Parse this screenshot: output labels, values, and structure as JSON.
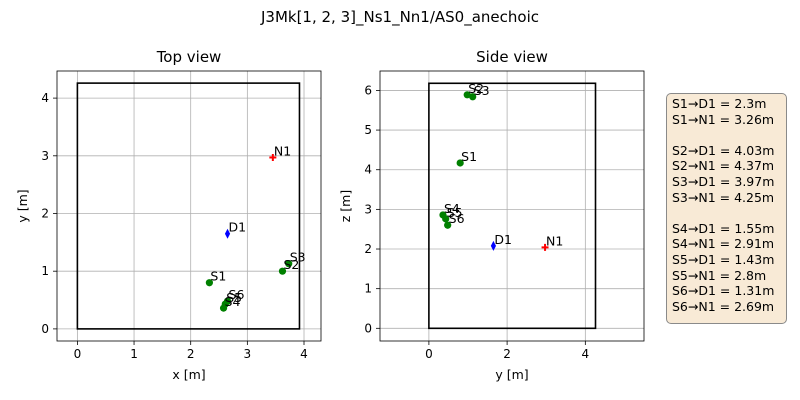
{
  "figure_title": "J3Mk[1, 2, 3]_Ns1_Nn1/AS0_anechoic",
  "colors": {
    "source": "#008000",
    "listener": "#0000ff",
    "noise": "#ff0000",
    "room": "#000000",
    "grid": "#b0b0b0",
    "box_bg": "#f8ead6"
  },
  "chart_data": [
    {
      "type": "scatter",
      "title": "Top view",
      "xlabel": "x [m]",
      "ylabel": "y [m]",
      "xlim": [
        -0.36,
        4.3
      ],
      "ylim": [
        -0.21,
        4.47
      ],
      "xticks": [
        0,
        1,
        2,
        3,
        4
      ],
      "yticks": [
        0,
        1,
        2,
        3,
        4
      ],
      "grid": true,
      "room": {
        "x": [
          0,
          3.92
        ],
        "y": [
          0,
          4.26
        ]
      },
      "points": [
        {
          "label": "N1",
          "x": 3.45,
          "y": 2.97,
          "kind": "noise"
        },
        {
          "label": "D1",
          "x": 2.65,
          "y": 1.65,
          "kind": "listener"
        },
        {
          "label": "S3",
          "x": 3.73,
          "y": 1.13,
          "kind": "source"
        },
        {
          "label": "S2",
          "x": 3.62,
          "y": 1.0,
          "kind": "source"
        },
        {
          "label": "S1",
          "x": 2.33,
          "y": 0.8,
          "kind": "source"
        },
        {
          "label": "S6",
          "x": 2.65,
          "y": 0.48,
          "kind": "source"
        },
        {
          "label": "S5",
          "x": 2.61,
          "y": 0.43,
          "kind": "source"
        },
        {
          "label": "S4",
          "x": 2.58,
          "y": 0.36,
          "kind": "source"
        }
      ]
    },
    {
      "type": "scatter",
      "title": "Side view",
      "xlabel": "y [m]",
      "ylabel": "z [m]",
      "xlim": [
        -1.25,
        5.5
      ],
      "ylim": [
        -0.32,
        6.49
      ],
      "xticks": [
        0,
        2,
        4
      ],
      "yticks": [
        0,
        1,
        2,
        3,
        4,
        5,
        6
      ],
      "grid": true,
      "room": {
        "x": [
          0,
          4.26
        ],
        "y": [
          0,
          6.18
        ]
      },
      "points": [
        {
          "label": "S2",
          "x": 0.98,
          "y": 5.89,
          "kind": "source"
        },
        {
          "label": "S3",
          "x": 1.12,
          "y": 5.84,
          "kind": "source"
        },
        {
          "label": "S1",
          "x": 0.8,
          "y": 4.17,
          "kind": "source"
        },
        {
          "label": "S4",
          "x": 0.36,
          "y": 2.86,
          "kind": "source"
        },
        {
          "label": "S5",
          "x": 0.43,
          "y": 2.76,
          "kind": "source"
        },
        {
          "label": "S6",
          "x": 0.48,
          "y": 2.6,
          "kind": "source"
        },
        {
          "label": "D1",
          "x": 1.65,
          "y": 2.08,
          "kind": "listener"
        },
        {
          "label": "N1",
          "x": 2.97,
          "y": 2.04,
          "kind": "noise"
        }
      ]
    }
  ],
  "distances": [
    "S1→D1 = 2.3m",
    "S1→N1 = 3.26m",
    "",
    "S2→D1 = 4.03m",
    "S2→N1 = 4.37m",
    "S3→D1 = 3.97m",
    "S3→N1 = 4.25m",
    "",
    "S4→D1 = 1.55m",
    "S4→N1 = 2.91m",
    "S5→D1 = 1.43m",
    "S5→N1 = 2.8m",
    "S6→D1 = 1.31m",
    "S6→N1 = 2.69m"
  ]
}
